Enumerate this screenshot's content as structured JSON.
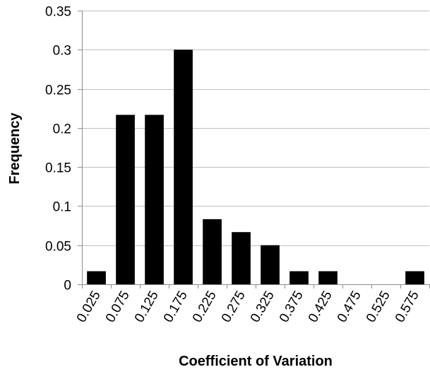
{
  "chart_data": {
    "type": "bar",
    "title": "",
    "xlabel": "Coefficient of Variation",
    "ylabel": "Frequency",
    "categories": [
      "0.025",
      "0.075",
      "0.125",
      "0.175",
      "0.225",
      "0.275",
      "0.325",
      "0.375",
      "0.425",
      "0.475",
      "0.525",
      "0.575"
    ],
    "values": [
      0.0167,
      0.2167,
      0.2167,
      0.3,
      0.0833,
      0.0667,
      0.05,
      0.0167,
      0.0167,
      0,
      0,
      0.0167
    ],
    "ylim": [
      0,
      0.35
    ],
    "yticks": [
      "0",
      "0.05",
      "0.1",
      "0.15",
      "0.2",
      "0.25",
      "0.3",
      "0.35"
    ],
    "ytick_values": [
      0,
      0.05,
      0.1,
      0.15,
      0.2,
      0.25,
      0.3,
      0.35
    ],
    "grid": true,
    "legend": "none",
    "colors": {
      "bar": "#000000",
      "grid": "#bfbfbf",
      "axis": "#8c8c8c"
    }
  }
}
